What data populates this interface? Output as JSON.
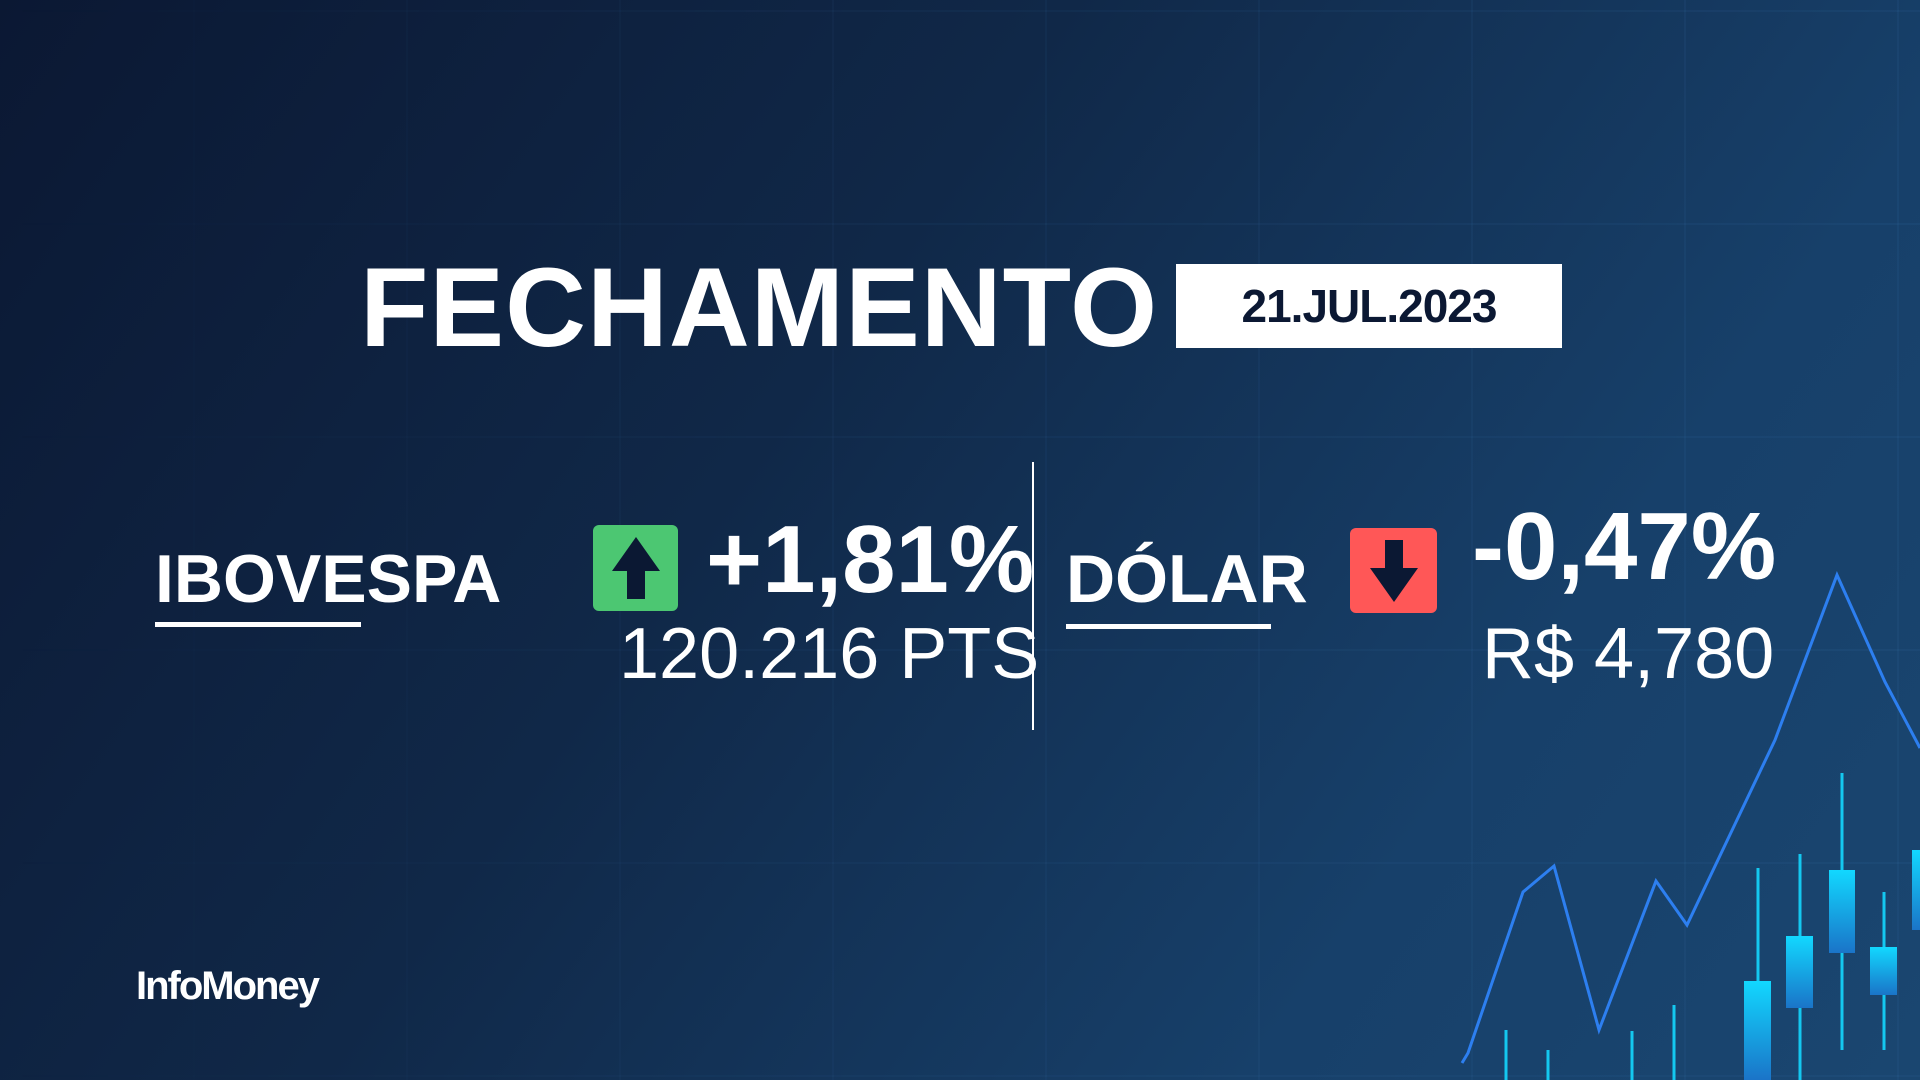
{
  "header": {
    "title": "FECHAMENTO",
    "date": "21.JUL.2023"
  },
  "ibovespa": {
    "label": "IBOVESPA",
    "change": "+1,81%",
    "value": "120.216 PTS",
    "direction_icon": "arrow-up-icon",
    "color": "#4cc772"
  },
  "dolar": {
    "label": "DÓLAR",
    "change": "-0,47%",
    "value": "R$ 4,780",
    "direction_icon": "arrow-down-icon",
    "color": "#ff5757"
  },
  "brand": {
    "logo": "InfoMoney"
  },
  "colors": {
    "background": "#102848",
    "line": "#2d7ff0",
    "candle_top": "#12d8ff",
    "candle_bottom": "#1a7ad0"
  }
}
